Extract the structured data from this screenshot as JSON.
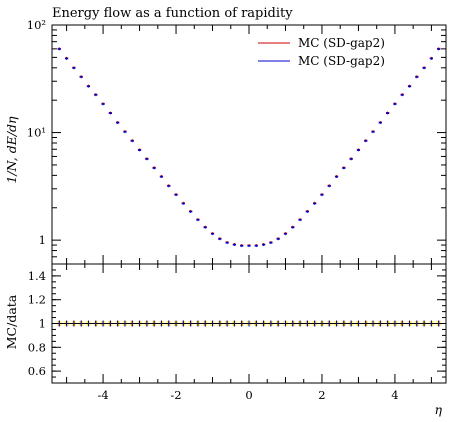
{
  "chart_data": [
    {
      "type": "line",
      "title": "Energy flow as a function of rapidity",
      "xlabel": "η",
      "ylabel": "1/N, dE/dη",
      "xlim": [
        -5.4,
        5.4
      ],
      "ylim": [
        0.6,
        100
      ],
      "yscale": "log",
      "yticks": [
        1,
        10,
        100
      ],
      "ytick_labels": [
        "1",
        "10¹",
        "10²"
      ],
      "legend_position": "top-right",
      "grid": false,
      "x": [
        -5.2,
        -5.0,
        -4.8,
        -4.6,
        -4.4,
        -4.2,
        -4.0,
        -3.8,
        -3.6,
        -3.4,
        -3.2,
        -3.0,
        -2.8,
        -2.6,
        -2.4,
        -2.2,
        -2.0,
        -1.8,
        -1.6,
        -1.4,
        -1.2,
        -1.0,
        -0.8,
        -0.6,
        -0.4,
        -0.2,
        0.0,
        0.2,
        0.4,
        0.6,
        0.8,
        1.0,
        1.2,
        1.4,
        1.6,
        1.8,
        2.0,
        2.2,
        2.4,
        2.6,
        2.8,
        3.0,
        3.2,
        3.4,
        3.6,
        3.8,
        4.0,
        4.2,
        4.4,
        4.6,
        4.8,
        5.0,
        5.2
      ],
      "series": [
        {
          "name": "MC (SD-gap2)",
          "color": "#cc0000",
          "values": [
            60,
            49,
            40,
            33,
            27,
            22.5,
            18.5,
            15.2,
            12.4,
            10.2,
            8.4,
            6.9,
            5.7,
            4.7,
            3.9,
            3.2,
            2.65,
            2.2,
            1.85,
            1.55,
            1.32,
            1.15,
            1.03,
            0.95,
            0.91,
            0.89,
            0.89,
            0.89,
            0.91,
            0.95,
            1.03,
            1.15,
            1.32,
            1.55,
            1.85,
            2.2,
            2.65,
            3.2,
            3.9,
            4.7,
            5.7,
            6.9,
            8.4,
            10.2,
            12.4,
            15.2,
            18.5,
            22.5,
            27,
            33,
            40,
            49,
            60
          ]
        },
        {
          "name": "MC (SD-gap2)",
          "color": "#0000cc",
          "values": [
            60,
            49,
            40,
            33,
            27,
            22.5,
            18.5,
            15.2,
            12.4,
            10.2,
            8.4,
            6.9,
            5.7,
            4.7,
            3.9,
            3.2,
            2.65,
            2.2,
            1.85,
            1.55,
            1.32,
            1.15,
            1.03,
            0.95,
            0.91,
            0.89,
            0.89,
            0.89,
            0.91,
            0.95,
            1.03,
            1.15,
            1.32,
            1.55,
            1.85,
            2.2,
            2.65,
            3.2,
            3.9,
            4.7,
            5.7,
            6.9,
            8.4,
            10.2,
            12.4,
            15.2,
            18.5,
            22.5,
            27,
            33,
            40,
            49,
            60
          ]
        }
      ]
    },
    {
      "type": "line",
      "xlabel": "η",
      "ylabel": "MC/data",
      "xlim": [
        -5.4,
        5.4
      ],
      "ylim": [
        0.5,
        1.5
      ],
      "yticks": [
        0.6,
        0.8,
        1,
        1.2,
        1.4
      ],
      "xticks": [
        -4,
        -2,
        0,
        2,
        4
      ],
      "band_color": "#ffee44",
      "series": [
        {
          "name": "MC (SD-gap2)",
          "color": "#cc0000",
          "values": "ratio=1"
        },
        {
          "name": "MC (SD-gap2)",
          "color": "#0000cc",
          "values": "ratio=1"
        }
      ],
      "ratio_value": 1
    }
  ]
}
